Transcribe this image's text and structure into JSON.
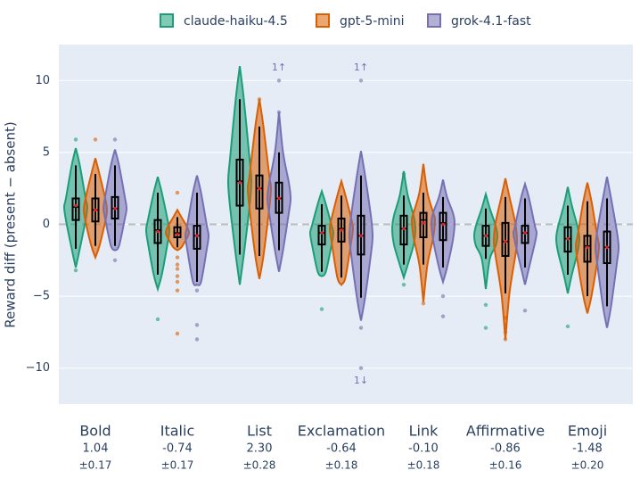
{
  "chart_data": {
    "type": "violin",
    "y_label": "Reward diff (present − absent)",
    "categories": [
      "Bold",
      "Italic",
      "List",
      "Exclamation",
      "Link",
      "Affirmative",
      "Emoji"
    ],
    "effects": [
      1.04,
      -0.74,
      2.3,
      -0.64,
      -0.1,
      -0.86,
      -1.48
    ],
    "effect_labels": [
      "1.04",
      "-0.74",
      "2.30",
      "-0.64",
      "-0.10",
      "-0.86",
      "-1.48"
    ],
    "effect_errors": [
      0.17,
      0.17,
      0.28,
      0.18,
      0.18,
      0.16,
      0.2
    ],
    "effect_error_labels": [
      "±0.17",
      "±0.17",
      "±0.28",
      "±0.18",
      "±0.18",
      "±0.16",
      "±0.20"
    ],
    "ylim": [
      -12.5,
      12.5
    ],
    "yticks": [
      {
        "value": -10,
        "label": "−10"
      },
      {
        "value": -5,
        "label": "−5"
      },
      0,
      5,
      10
    ],
    "grid": true,
    "legend": "top",
    "annotations": [
      {
        "text": "1↑",
        "category": "List",
        "series": "grok-4.1-fast",
        "side": "top"
      },
      {
        "text": "1↑",
        "category": "Exclamation",
        "series": "grok-4.1-fast",
        "side": "top"
      },
      {
        "text": "1↓",
        "category": "Exclamation",
        "series": "grok-4.1-fast",
        "side": "bottom"
      }
    ],
    "series": [
      {
        "name": "claude-haiku-4.5",
        "color": "#1b9e77",
        "stats": [
          {
            "min": -3.0,
            "whisker_low": -1.7,
            "q1": 0.3,
            "median": 1.2,
            "q3": 1.8,
            "whisker_high": 4.1,
            "max": 5.3,
            "mean": 1.3,
            "outliers": [
              5.9,
              -3.2
            ]
          },
          {
            "min": -4.5,
            "whisker_low": -3.5,
            "q1": -1.3,
            "median": -0.4,
            "q3": 0.3,
            "whisker_high": 2.2,
            "max": 3.3,
            "mean": -0.5,
            "outliers": [
              -6.6
            ]
          },
          {
            "min": -4.2,
            "whisker_low": -2.1,
            "q1": 1.3,
            "median": 3.0,
            "q3": 4.5,
            "whisker_high": 8.7,
            "max": 11.0,
            "mean": 2.9,
            "outliers": []
          },
          {
            "min": -3.6,
            "whisker_low": -3.3,
            "q1": -1.4,
            "median": -0.6,
            "q3": -0.1,
            "whisker_high": 1.4,
            "max": 2.3,
            "mean": -0.6,
            "outliers": [
              -5.9
            ]
          },
          {
            "min": -3.7,
            "whisker_low": -2.8,
            "q1": -1.4,
            "median": -0.3,
            "q3": 0.6,
            "whisker_high": 2.0,
            "max": 3.7,
            "mean": -0.3,
            "outliers": [
              3.5,
              -4.2
            ]
          },
          {
            "min": -4.5,
            "whisker_low": -2.4,
            "q1": -1.5,
            "median": -0.8,
            "q3": -0.1,
            "whisker_high": 1.1,
            "max": 2.1,
            "mean": -0.8,
            "outliers": [
              -5.6,
              -7.2
            ]
          },
          {
            "min": -4.8,
            "whisker_low": -3.5,
            "q1": -1.9,
            "median": -1.0,
            "q3": -0.2,
            "whisker_high": 1.3,
            "max": 2.6,
            "mean": -1.0,
            "outliers": [
              -7.1
            ]
          }
        ]
      },
      {
        "name": "gpt-5-mini",
        "color": "#d95f02",
        "stats": [
          {
            "min": -2.3,
            "whisker_low": -1.5,
            "q1": 0.2,
            "median": 1.0,
            "q3": 1.8,
            "whisker_high": 3.5,
            "max": 4.6,
            "mean": 1.0,
            "outliers": [
              5.9
            ]
          },
          {
            "min": -1.8,
            "whisker_low": -1.6,
            "q1": -0.9,
            "median": -0.6,
            "q3": -0.2,
            "whisker_high": 0.5,
            "max": 1.0,
            "mean": -0.7,
            "outliers": [
              2.2,
              -2.3,
              -2.8,
              -3.1,
              -3.6,
              -4.0,
              -4.6,
              -7.6
            ]
          },
          {
            "min": -3.8,
            "whisker_low": -2.2,
            "q1": 1.1,
            "median": 2.5,
            "q3": 3.4,
            "whisker_high": 6.8,
            "max": 8.7,
            "mean": 2.5,
            "outliers": [
              8.7
            ]
          },
          {
            "min": -4.2,
            "whisker_low": -3.7,
            "q1": -1.2,
            "median": -0.3,
            "q3": 0.4,
            "whisker_high": 2.0,
            "max": 3.0,
            "mean": -0.4,
            "outliers": []
          },
          {
            "min": -5.4,
            "whisker_low": -2.8,
            "q1": -0.9,
            "median": 0.3,
            "q3": 0.8,
            "whisker_high": 2.2,
            "max": 4.2,
            "mean": 0.1,
            "outliers": [
              -5.5
            ]
          },
          {
            "min": -8.0,
            "whisker_low": -4.8,
            "q1": -2.2,
            "median": -1.2,
            "q3": 0.1,
            "whisker_high": 1.9,
            "max": 3.2,
            "mean": -1.2,
            "outliers": [
              -6.5,
              -7.0,
              -7.5,
              -8.0
            ]
          },
          {
            "min": -6.2,
            "whisker_low": -5.0,
            "q1": -2.6,
            "median": -1.5,
            "q3": -0.8,
            "whisker_high": 1.6,
            "max": 2.9,
            "mean": -1.6,
            "outliers": []
          }
        ]
      },
      {
        "name": "grok-4.1-fast",
        "color": "#7570b3",
        "stats": [
          {
            "min": -1.8,
            "whisker_low": -1.5,
            "q1": 0.4,
            "median": 1.1,
            "q3": 1.9,
            "whisker_high": 4.1,
            "max": 5.2,
            "mean": 1.1,
            "outliers": [
              5.9,
              -2.5
            ]
          },
          {
            "min": -4.2,
            "whisker_low": -4.0,
            "q1": -1.7,
            "median": -0.8,
            "q3": -0.1,
            "whisker_high": 2.2,
            "max": 3.4,
            "mean": -0.8,
            "outliers": [
              -4.6,
              -7.0,
              -8.0
            ]
          },
          {
            "min": -3.3,
            "whisker_low": -1.8,
            "q1": 0.8,
            "median": 1.8,
            "q3": 2.9,
            "whisker_high": 5.0,
            "max": 7.8,
            "mean": 1.8,
            "outliers": [
              7.8,
              10.0
            ]
          },
          {
            "min": -6.7,
            "whisker_low": -5.1,
            "q1": -2.1,
            "median": -0.8,
            "q3": 0.6,
            "whisker_high": 3.4,
            "max": 5.1,
            "mean": -0.8,
            "outliers": [
              -7.2,
              10.0,
              -10.0
            ]
          },
          {
            "min": -4.0,
            "whisker_low": -3.0,
            "q1": -1.1,
            "median": 0.1,
            "q3": 0.8,
            "whisker_high": 1.9,
            "max": 3.1,
            "mean": 0.0,
            "outliers": [
              -5.0,
              -6.4
            ]
          },
          {
            "min": -4.2,
            "whisker_low": -3.0,
            "q1": -1.3,
            "median": -0.6,
            "q3": -0.1,
            "whisker_high": 1.8,
            "max": 2.8,
            "mean": -0.6,
            "outliers": [
              -6.0
            ]
          },
          {
            "min": -7.2,
            "whisker_low": -5.7,
            "q1": -2.7,
            "median": -1.6,
            "q3": -0.5,
            "whisker_high": 1.8,
            "max": 3.3,
            "mean": -1.6,
            "outliers": []
          }
        ]
      }
    ]
  }
}
